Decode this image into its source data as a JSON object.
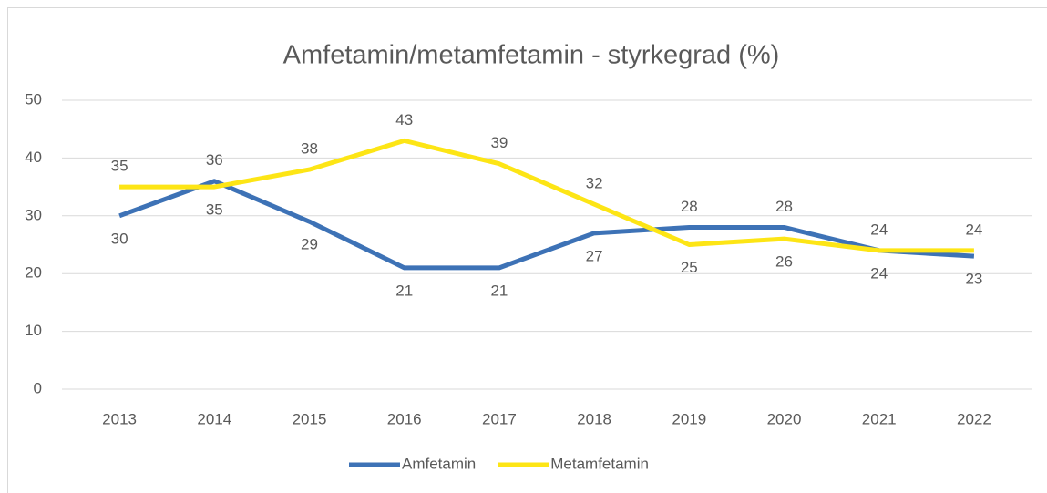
{
  "chart_data": {
    "type": "line",
    "title": "Amfetamin/metamfetamin - styrkegrad (%)",
    "categories": [
      "2013",
      "2014",
      "2015",
      "2016",
      "2017",
      "2018",
      "2019",
      "2020",
      "2021",
      "2022"
    ],
    "series": [
      {
        "name": "Amfetamin",
        "color": "#3d72b6",
        "values": [
          30,
          36,
          29,
          21,
          21,
          27,
          28,
          28,
          24,
          23
        ]
      },
      {
        "name": "Metamfetamin",
        "color": "#fde515",
        "values": [
          35,
          35,
          38,
          43,
          39,
          32,
          25,
          26,
          24,
          24
        ]
      }
    ],
    "ylim": [
      0,
      50
    ],
    "yticks": [
      0,
      10,
      20,
      30,
      40,
      50
    ],
    "grid": true,
    "legend": "bottom"
  }
}
